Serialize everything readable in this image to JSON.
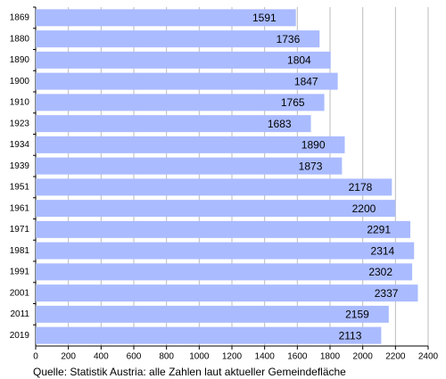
{
  "chart_data": {
    "type": "barh",
    "caption": "Quelle: Statistik Austria: alle Zahlen laut aktueller Gemeindefläche",
    "categories": [
      "1869",
      "1880",
      "1890",
      "1900",
      "1910",
      "1923",
      "1934",
      "1939",
      "1951",
      "1961",
      "1971",
      "1981",
      "1991",
      "2001",
      "2011",
      "2019"
    ],
    "values": [
      1591,
      1736,
      1804,
      1847,
      1765,
      1683,
      1890,
      1873,
      2178,
      2200,
      2291,
      2314,
      2302,
      2337,
      2159,
      2113
    ],
    "color": "#aabbff",
    "xlim": [
      0,
      2400
    ],
    "xticks": [
      0,
      200,
      400,
      600,
      800,
      1000,
      1200,
      1400,
      1600,
      1800,
      2000,
      2200,
      2400
    ],
    "grid": true
  }
}
